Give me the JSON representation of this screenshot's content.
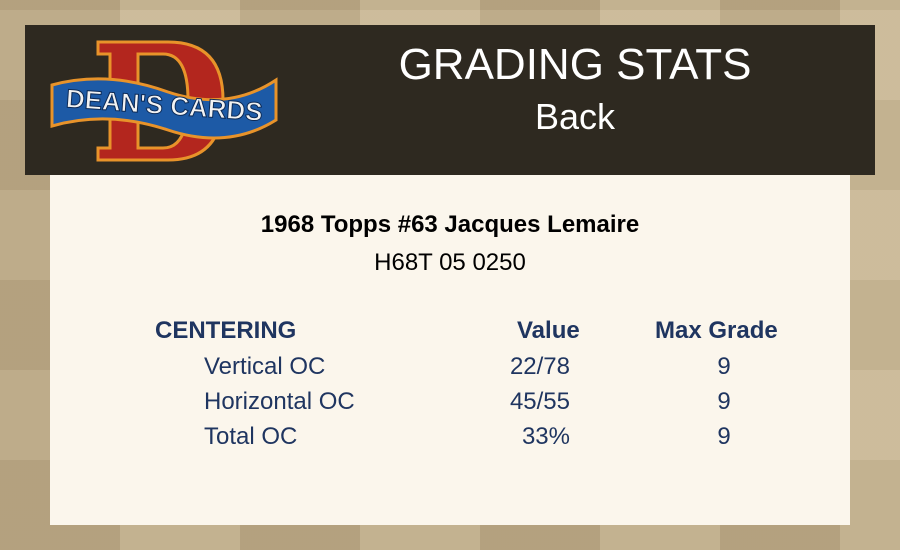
{
  "logo": {
    "text": "DEAN'S CARDS",
    "colors": {
      "d": "#b3261e",
      "banner": "#1d5aa6",
      "outline": "#e8932a"
    }
  },
  "header": {
    "title": "GRADING STATS",
    "subtitle": "Back"
  },
  "card": {
    "title": "1968 Topps #63 Jacques Lemaire",
    "id": "H68T 05 0250"
  },
  "table": {
    "section": "CENTERING",
    "col_value": "Value",
    "col_max": "Max Grade",
    "rows": [
      {
        "label": "Vertical OC",
        "value": "22/78",
        "max": "9"
      },
      {
        "label": "Horizontal OC",
        "value": "45/55",
        "max": "9"
      },
      {
        "label": "Total OC",
        "value": "33%",
        "max": "9"
      }
    ]
  },
  "colors": {
    "header_bg": "#2e2920",
    "panel_bg": "#fbf6ec",
    "text_blue": "#1f3560"
  }
}
